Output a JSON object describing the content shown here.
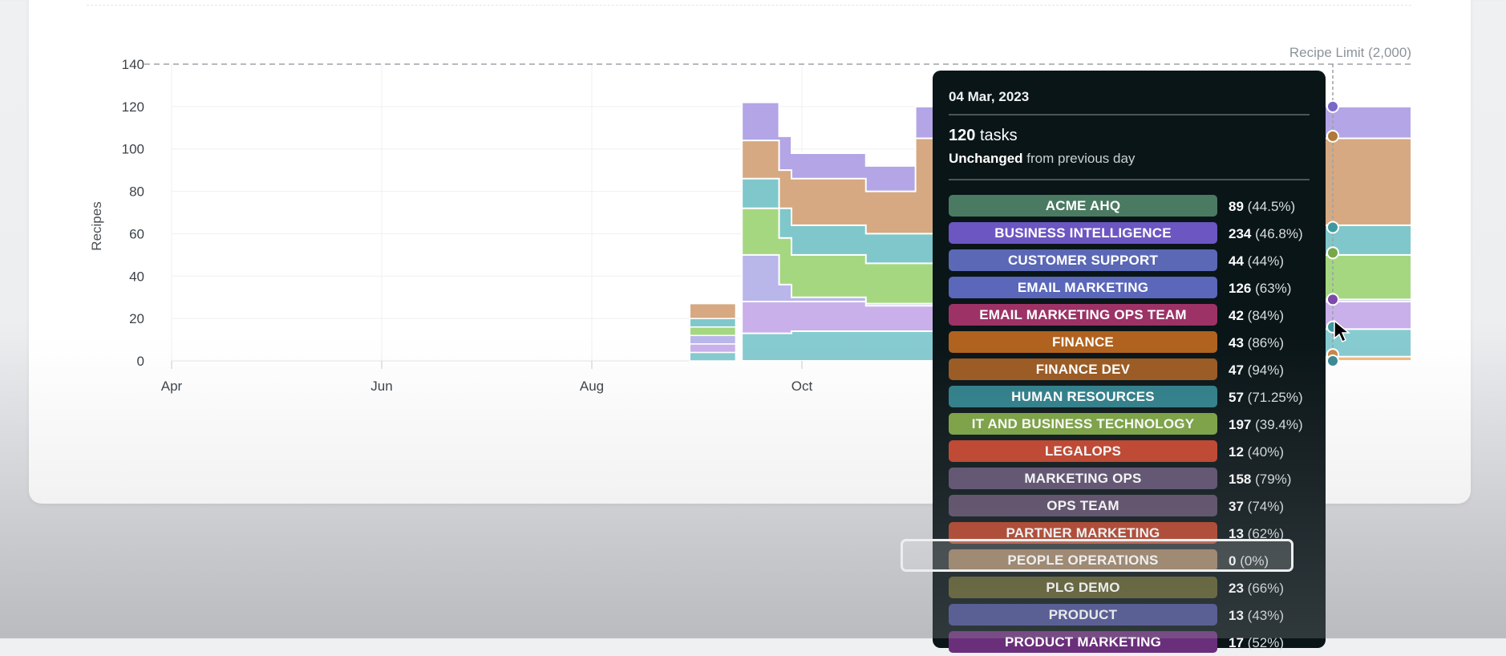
{
  "chart_data": {
    "type": "area",
    "stacked": true,
    "xlabel": "",
    "ylabel": "Recipes",
    "ylim": [
      0,
      140
    ],
    "y_ticks": [
      "0",
      "20",
      "40",
      "60",
      "80",
      "100",
      "120",
      "140"
    ],
    "x_ticks": [
      "Apr",
      "Jun",
      "Aug",
      "Oct"
    ],
    "limit_label": "Recipe Limit (2,000)",
    "series_top_boundaries": [
      {
        "name": "base",
        "color": "#f2b880",
        "points": [
          [
            0.7,
            0
          ],
          [
            0.93,
            0
          ],
          [
            0.931,
            2
          ],
          [
            1.0,
            2
          ]
        ]
      },
      {
        "name": "teal-1",
        "color": "#86cbd0",
        "points": [
          [
            0.0,
            0
          ],
          [
            0.455,
            0
          ],
          [
            0.46,
            13
          ],
          [
            0.5,
            14
          ],
          [
            0.75,
            13
          ],
          [
            0.76,
            15
          ],
          [
            1.0,
            15
          ]
        ]
      },
      {
        "name": "lavender-1",
        "color": "#c9b0ea",
        "points": [
          [
            0.0,
            0
          ],
          [
            0.455,
            0
          ],
          [
            0.46,
            28
          ],
          [
            0.5,
            28
          ],
          [
            0.56,
            26
          ],
          [
            0.75,
            26
          ],
          [
            0.76,
            28
          ],
          [
            1.0,
            28
          ]
        ]
      },
      {
        "name": "lavender-2",
        "color": "#b9b6ea",
        "points": [
          [
            0.0,
            0
          ],
          [
            0.455,
            0
          ],
          [
            0.46,
            50
          ],
          [
            0.48,
            50
          ],
          [
            0.49,
            36
          ],
          [
            0.5,
            30
          ],
          [
            0.56,
            27
          ],
          [
            0.75,
            27
          ],
          [
            0.76,
            29
          ],
          [
            1.0,
            29
          ]
        ]
      },
      {
        "name": "green",
        "color": "#a5d781",
        "points": [
          [
            0.0,
            0
          ],
          [
            0.455,
            0
          ],
          [
            0.46,
            72
          ],
          [
            0.48,
            72
          ],
          [
            0.49,
            58
          ],
          [
            0.5,
            50
          ],
          [
            0.56,
            46
          ],
          [
            0.75,
            46
          ],
          [
            0.76,
            50
          ],
          [
            1.0,
            50
          ]
        ]
      },
      {
        "name": "teal-2",
        "color": "#7fc7cb",
        "points": [
          [
            0.0,
            0
          ],
          [
            0.455,
            0
          ],
          [
            0.46,
            86
          ],
          [
            0.48,
            86
          ],
          [
            0.49,
            72
          ],
          [
            0.5,
            64
          ],
          [
            0.56,
            60
          ],
          [
            0.75,
            60
          ],
          [
            0.76,
            64
          ],
          [
            1.0,
            64
          ]
        ]
      },
      {
        "name": "tan",
        "color": "#d6a982",
        "points": [
          [
            0.0,
            0
          ],
          [
            0.455,
            0
          ],
          [
            0.46,
            104
          ],
          [
            0.48,
            104
          ],
          [
            0.49,
            90
          ],
          [
            0.5,
            86
          ],
          [
            0.56,
            80
          ],
          [
            0.58,
            80
          ],
          [
            0.6,
            105
          ],
          [
            0.75,
            104
          ],
          [
            0.76,
            105
          ],
          [
            1.0,
            105
          ]
        ]
      },
      {
        "name": "purple",
        "color": "#b3a5e6",
        "points": [
          [
            0.0,
            0
          ],
          [
            0.455,
            0
          ],
          [
            0.46,
            122
          ],
          [
            0.48,
            122
          ],
          [
            0.49,
            106
          ],
          [
            0.5,
            98
          ],
          [
            0.56,
            92
          ],
          [
            0.58,
            92
          ],
          [
            0.6,
            120
          ],
          [
            0.75,
            118
          ],
          [
            0.76,
            120
          ],
          [
            1.0,
            120
          ]
        ]
      }
    ],
    "tooltip_markers": [
      {
        "value": 120,
        "color": "#7a68c8"
      },
      {
        "value": 106,
        "color": "#b07a3a"
      },
      {
        "value": 63,
        "color": "#3f9aa0"
      },
      {
        "value": 51,
        "color": "#76a84a"
      },
      {
        "value": 29,
        "color": "#7d4aa8"
      },
      {
        "value": 16,
        "color": "#3f9aa0"
      },
      {
        "value": 3,
        "color": "#c8864a"
      },
      {
        "value": 0,
        "color": "#3a8a96"
      }
    ]
  },
  "tooltip": {
    "date": "04 Mar, 2023",
    "tasks_count": "120",
    "tasks_word": "tasks",
    "change_strong": "Unchanged",
    "change_rest": "from previous day",
    "rows": [
      {
        "label": "ACME AHQ",
        "count": "89",
        "pct": "(44.5%)",
        "color": "#4b7a62"
      },
      {
        "label": "BUSINESS INTELLIGENCE",
        "count": "234",
        "pct": "(46.8%)",
        "color": "#6b56c2"
      },
      {
        "label": "CUSTOMER SUPPORT",
        "count": "44",
        "pct": "(44%)",
        "color": "#5b68b5"
      },
      {
        "label": "EMAIL MARKETING",
        "count": "126",
        "pct": "(63%)",
        "color": "#5a67ba"
      },
      {
        "label": "EMAIL MARKETING OPS TEAM",
        "count": "42",
        "pct": "(84%)",
        "color": "#9c3266"
      },
      {
        "label": "FINANCE",
        "count": "43",
        "pct": "(86%)",
        "color": "#b0621e"
      },
      {
        "label": "FINANCE DEV",
        "count": "47",
        "pct": "(94%)",
        "color": "#9b5a22"
      },
      {
        "label": "HUMAN RESOURCES",
        "count": "57",
        "pct": "(71.25%)",
        "color": "#2f7f8a"
      },
      {
        "label": "IT AND BUSINESS TECHNOLOGY",
        "count": "197",
        "pct": "(39.4%)",
        "color": "#7ba342"
      },
      {
        "label": "LEGALOPS",
        "count": "12",
        "pct": "(40%)",
        "color": "#c2412a"
      },
      {
        "label": "MARKETING OPS",
        "count": "158",
        "pct": "(79%)",
        "color": "#5c4e6e"
      },
      {
        "label": "OPS TEAM",
        "count": "37",
        "pct": "(74%)",
        "color": "#5a4a66"
      },
      {
        "label": "PARTNER MARKETING",
        "count": "13",
        "pct": "(62%)",
        "color": "#b23f26"
      },
      {
        "label": "PEOPLE OPERATIONS",
        "count": "0",
        "pct": "(0%)",
        "color": "#8a6a48"
      },
      {
        "label": "PLG DEMO",
        "count": "23",
        "pct": "(66%)",
        "color": "#5a5a2a"
      },
      {
        "label": "PRODUCT",
        "count": "13",
        "pct": "(43%)",
        "color": "#454c8e"
      },
      {
        "label": "PRODUCT MARKETING",
        "count": "17",
        "pct": "(52%)",
        "color": "#6a2f7a"
      }
    ]
  }
}
